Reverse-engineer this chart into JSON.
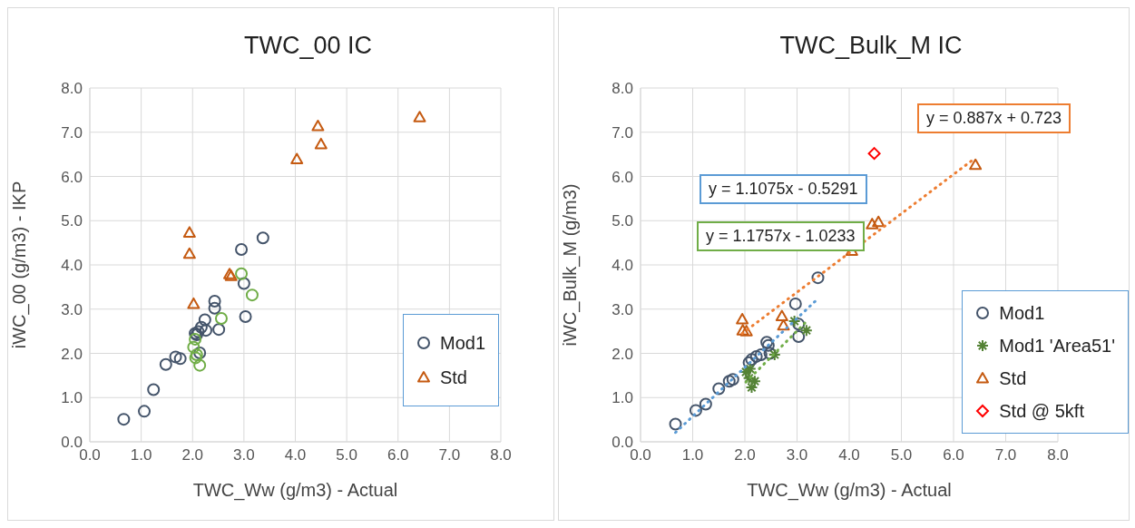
{
  "chart_data": [
    {
      "type": "scatter",
      "title": "TWC_00 IC",
      "xlabel": "TWC_Ww (g/m3) - Actual",
      "ylabel": "iWC_00  (g/m3) - IKP",
      "xlim": [
        0,
        8
      ],
      "ylim": [
        0,
        8
      ],
      "xticks": [
        {
          "value": 0,
          "label": "0.0"
        },
        {
          "value": 1,
          "label": "1.0"
        },
        {
          "value": 2,
          "label": "2.0"
        },
        {
          "value": 3,
          "label": "3.0"
        },
        {
          "value": 4,
          "label": "4.0"
        },
        {
          "value": 5,
          "label": "5.0"
        },
        {
          "value": 6,
          "label": "6.0"
        },
        {
          "value": 7,
          "label": "7.0"
        },
        {
          "value": 8,
          "label": "8.0"
        }
      ],
      "yticks": [
        {
          "value": 0,
          "label": "0.0"
        },
        {
          "value": 1,
          "label": "1.0"
        },
        {
          "value": 2,
          "label": "2.0"
        },
        {
          "value": 3,
          "label": "3.0"
        },
        {
          "value": 4,
          "label": "4.0"
        },
        {
          "value": 5,
          "label": "5.0"
        },
        {
          "value": 6,
          "label": "6.0"
        },
        {
          "value": 7,
          "label": "7.0"
        },
        {
          "value": 8,
          "label": "8.0"
        }
      ],
      "grid": true,
      "legend": "bottom right",
      "series": [
        {
          "name": "Mod1",
          "color": "#44546a",
          "marker": "circle",
          "x": [
            0.66,
            1.06,
            1.24,
            1.48,
            1.67,
            1.76,
            2.95,
            3.37,
            3.0,
            3.03,
            2.43,
            2.43,
            2.51,
            2.24,
            2.11,
            2.05,
            2.17,
            2.26,
            2.14,
            2.08
          ],
          "values": [
            0.51,
            0.69,
            1.18,
            1.75,
            1.92,
            1.88,
            4.35,
            4.61,
            3.58,
            2.83,
            3.18,
            3.02,
            2.54,
            2.76,
            2.49,
            2.45,
            2.59,
            2.52,
            2.01,
            2.42
          ]
        },
        {
          "color": "#70ad47",
          "marker": "circle",
          "x": [
            2.95,
            3.16,
            2.56,
            2.05,
            2.02,
            2.08,
            2.06,
            2.14
          ],
          "values": [
            3.8,
            3.32,
            2.79,
            2.32,
            2.14,
            1.97,
            1.9,
            1.73
          ]
        },
        {
          "name": "Std",
          "color": "#c55a11",
          "marker": "triangle",
          "x": [
            4.44,
            4.5,
            4.03,
            6.42,
            1.94,
            1.94,
            2.72,
            2.75,
            2.02
          ],
          "values": [
            7.14,
            6.73,
            6.39,
            7.34,
            4.73,
            4.25,
            3.79,
            3.75,
            3.12
          ]
        }
      ]
    },
    {
      "type": "scatter",
      "title": "TWC_Bulk_M IC",
      "xlabel": "TWC_Ww (g/m3) - Actual",
      "ylabel": "iWC_Bulk_M (g/m3)",
      "xlim": [
        0,
        8
      ],
      "ylim": [
        0,
        8
      ],
      "xticks": [
        {
          "value": 0,
          "label": "0.0"
        },
        {
          "value": 1,
          "label": "1.0"
        },
        {
          "value": 2,
          "label": "2.0"
        },
        {
          "value": 3,
          "label": "3.0"
        },
        {
          "value": 4,
          "label": "4.0"
        },
        {
          "value": 5,
          "label": "5.0"
        },
        {
          "value": 6,
          "label": "6.0"
        },
        {
          "value": 7,
          "label": "7.0"
        },
        {
          "value": 8,
          "label": "8.0"
        }
      ],
      "yticks": [
        {
          "value": 0,
          "label": "0.0"
        },
        {
          "value": 1,
          "label": "1.0"
        },
        {
          "value": 2,
          "label": "2.0"
        },
        {
          "value": 3,
          "label": "3.0"
        },
        {
          "value": 4,
          "label": "4.0"
        },
        {
          "value": 5,
          "label": "5.0"
        },
        {
          "value": 6,
          "label": "6.0"
        },
        {
          "value": 7,
          "label": "7.0"
        },
        {
          "value": 8,
          "label": "8.0"
        }
      ],
      "grid": true,
      "legend": "bottom right",
      "annotations": [
        "y = 0.887x + 0.723",
        "y = 1.1075x - 0.5291",
        "y = 1.1757x - 1.0233"
      ],
      "series": [
        {
          "name": "Mod1",
          "color": "#44546a",
          "marker": "circle",
          "x": [
            0.67,
            1.06,
            1.25,
            1.5,
            1.7,
            1.77,
            2.42,
            2.45,
            2.13,
            2.22,
            2.08,
            2.31,
            2.48,
            2.97,
            3.03,
            3.03,
            3.4
          ],
          "values": [
            0.4,
            0.71,
            0.85,
            1.2,
            1.37,
            1.41,
            2.25,
            2.18,
            1.86,
            1.93,
            1.79,
            1.97,
            2.0,
            3.12,
            2.66,
            2.38,
            3.71
          ]
        },
        {
          "name": "Mod1 'Area51'",
          "color": "#548235",
          "marker": "cross",
          "x": [
            2.08,
            2.13,
            2.02,
            2.1,
            2.57,
            2.95,
            3.18,
            2.19
          ],
          "values": [
            1.44,
            1.23,
            1.58,
            1.65,
            1.97,
            2.73,
            2.52,
            1.37
          ]
        },
        {
          "name": "Std",
          "color": "#c55a11",
          "marker": "triangle",
          "x": [
            1.95,
            1.96,
            2.03,
            2.71,
            2.74,
            4.05,
            4.44,
            4.56,
            6.42
          ],
          "values": [
            2.77,
            2.52,
            2.5,
            2.84,
            2.63,
            4.32,
            4.92,
            4.97,
            6.26
          ]
        },
        {
          "name": "Std @ 5kft",
          "color": "#ff0000",
          "marker": "diamond",
          "x": [
            4.48
          ],
          "values": [
            6.52
          ]
        },
        {
          "type": "line",
          "color": "#ed7d31",
          "marker": "none",
          "line_style": "dotted",
          "x": [
            1.95,
            6.42
          ],
          "values": [
            2.45,
            6.42
          ]
        },
        {
          "type": "line",
          "color": "#5b9bd5",
          "marker": "none",
          "line_style": "dotted",
          "x": [
            0.67,
            3.35
          ],
          "values": [
            0.21,
            3.18
          ]
        },
        {
          "type": "line",
          "color": "#70ad47",
          "marker": "none",
          "line_style": "dotted",
          "x": [
            2.02,
            3.18
          ],
          "values": [
            1.35,
            2.72
          ]
        }
      ]
    }
  ]
}
